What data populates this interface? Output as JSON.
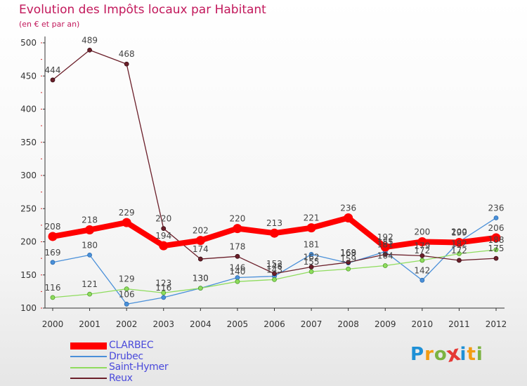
{
  "title": "Evolution des Impôts locaux par Habitant",
  "subtitle": "(en € et par an)",
  "logo_letters": [
    "P",
    "r",
    "o",
    "x",
    "i",
    "t",
    "i"
  ],
  "logo_colors": [
    "#1e90d6",
    "#f39c12",
    "#7cb342",
    "#e53935",
    "#1e90d6",
    "#f39c12",
    "#7cb342"
  ],
  "chart_data": {
    "type": "line",
    "x": [
      "2000",
      "2001",
      "2002",
      "2003",
      "2004",
      "2005",
      "2006",
      "2007",
      "2008",
      "2009",
      "2010",
      "2011",
      "2012"
    ],
    "yticks": [
      "100",
      "150",
      "200",
      "250",
      "300",
      "350",
      "400",
      "450",
      "500"
    ],
    "ylim": [
      100,
      500
    ],
    "grid": false,
    "legend_position": "bottom-left",
    "series": [
      {
        "name": "CLARBEC",
        "color": "#ff0000",
        "values": [
          208,
          218,
          229,
          194,
          202,
          220,
          213,
          221,
          236,
          192,
          200,
          199,
          206
        ]
      },
      {
        "name": "Drubec",
        "color": "#4a90d9",
        "values": [
          169,
          180,
          106,
          116,
          130,
          146,
          148,
          181,
          168,
          185,
          142,
          200,
          236
        ]
      },
      {
        "name": "Saint-Hymer",
        "color": "#8fdc5e",
        "values": [
          116,
          121,
          129,
          123,
          130,
          140,
          143,
          155,
          159,
          164,
          172,
          182,
          188
        ]
      },
      {
        "name": "Reux",
        "color": "#6b1f2a",
        "values": [
          444,
          489,
          468,
          220,
          174,
          178,
          152,
          162,
          169,
          181,
          179,
          172,
          175
        ]
      }
    ]
  }
}
